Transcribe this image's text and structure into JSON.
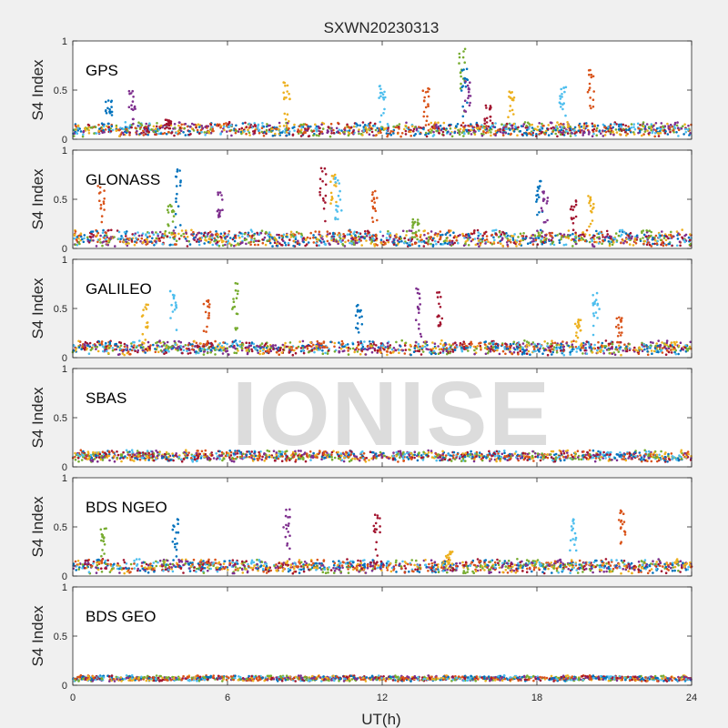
{
  "figure": {
    "title": "SXWN20230313",
    "xlabel": "UT(h)",
    "ylabel": "S4 Index",
    "watermark": "IONISE"
  },
  "chart_data": {
    "type": "scatter",
    "title": "SXWN20230313",
    "xlabel": "UT(h)",
    "ylabel": "S4 Index",
    "xlim": [
      0,
      24
    ],
    "ylim": [
      0,
      1
    ],
    "xticks": [
      0,
      6,
      12,
      18,
      24
    ],
    "xtick_labels": [
      "0",
      "6",
      "12",
      "18",
      "24"
    ],
    "yticks": [
      0,
      0.5,
      1
    ],
    "ytick_labels": [
      "0",
      "0.5",
      "1"
    ],
    "grid": false,
    "palette": [
      "#0072BD",
      "#D95319",
      "#EDB120",
      "#7E2F8E",
      "#77AC30",
      "#4DBEEE",
      "#A2142F"
    ],
    "panels": [
      {
        "name": "GPS",
        "baseline": 0.1,
        "noise": 0.05,
        "spikes": [
          [
            1.4,
            0.4
          ],
          [
            2.3,
            0.5
          ],
          [
            3.7,
            0.2
          ],
          [
            8.3,
            0.6
          ],
          [
            12.0,
            0.57
          ],
          [
            13.7,
            0.53
          ],
          [
            15.1,
            0.95
          ],
          [
            15.2,
            0.75
          ],
          [
            15.3,
            0.6
          ],
          [
            16.1,
            0.35
          ],
          [
            17.0,
            0.5
          ],
          [
            19.0,
            0.55
          ],
          [
            20.1,
            0.72
          ]
        ]
      },
      {
        "name": "GLONASS",
        "baseline": 0.1,
        "noise": 0.06,
        "spikes": [
          [
            1.1,
            0.65
          ],
          [
            3.8,
            0.45
          ],
          [
            4.1,
            0.83
          ],
          [
            5.7,
            0.6
          ],
          [
            9.7,
            0.84
          ],
          [
            10.1,
            0.78
          ],
          [
            10.3,
            0.75
          ],
          [
            11.7,
            0.6
          ],
          [
            13.3,
            0.3
          ],
          [
            18.1,
            0.7
          ],
          [
            18.3,
            0.6
          ],
          [
            19.4,
            0.5
          ],
          [
            20.1,
            0.55
          ]
        ]
      },
      {
        "name": "GALILEO",
        "baseline": 0.1,
        "noise": 0.05,
        "spikes": [
          [
            2.8,
            0.55
          ],
          [
            3.9,
            0.7
          ],
          [
            5.2,
            0.6
          ],
          [
            6.3,
            0.78
          ],
          [
            11.1,
            0.55
          ],
          [
            13.4,
            0.72
          ],
          [
            14.2,
            0.7
          ],
          [
            19.6,
            0.4
          ],
          [
            20.3,
            0.67
          ],
          [
            21.2,
            0.42
          ]
        ]
      },
      {
        "name": "SBAS",
        "baseline": 0.11,
        "noise": 0.04,
        "spikes": []
      },
      {
        "name": "BDS NGEO",
        "baseline": 0.1,
        "noise": 0.05,
        "spikes": [
          [
            1.2,
            0.5
          ],
          [
            4.0,
            0.6
          ],
          [
            8.3,
            0.7
          ],
          [
            11.8,
            0.65
          ],
          [
            14.6,
            0.25
          ],
          [
            19.4,
            0.6
          ],
          [
            21.3,
            0.68
          ]
        ]
      },
      {
        "name": "BDS GEO",
        "baseline": 0.07,
        "noise": 0.02,
        "spikes": []
      }
    ]
  }
}
